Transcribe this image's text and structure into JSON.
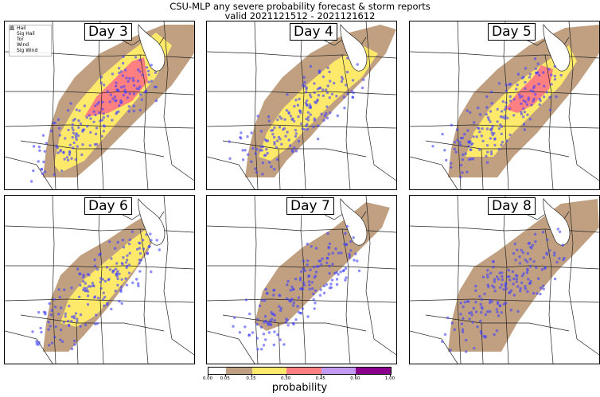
{
  "title": {
    "line1": "CSU-MLP any severe probability forecast & storm reports",
    "line2": "valid 2021121512 - 2021121612"
  },
  "legend": [
    {
      "label": "Hail",
      "shape": "circle",
      "color": "#7fbf7f"
    },
    {
      "label": "Sig Hail",
      "shape": "triangle",
      "color": "#555555"
    },
    {
      "label": "Tor",
      "shape": "circle",
      "color": "#ff7f7f"
    },
    {
      "label": "Wind",
      "shape": "circle",
      "color": "#7f7fff"
    },
    {
      "label": "Sig Wind",
      "shape": "square",
      "color": "#888888"
    }
  ],
  "panels": [
    {
      "label": "Day 3",
      "levels": [
        "brown",
        "yellow",
        "red"
      ]
    },
    {
      "label": "Day 4",
      "levels": [
        "brown",
        "yellow"
      ]
    },
    {
      "label": "Day 5",
      "levels": [
        "brown",
        "yellow",
        "red"
      ]
    },
    {
      "label": "Day 6",
      "levels": [
        "brown",
        "yellow"
      ]
    },
    {
      "label": "Day 7",
      "levels": [
        "brown"
      ]
    },
    {
      "label": "Day 8",
      "levels": [
        "brown"
      ]
    }
  ],
  "colorbar": {
    "label": "probability",
    "ticks": [
      "0.00",
      "0.05",
      "0.15",
      "0.30",
      "0.45",
      "0.60",
      "1.00"
    ],
    "colors": [
      "#ffffff",
      "#c0a080",
      "#ffe96a",
      "#ff8080",
      "#c39bf3",
      "#8b008b"
    ]
  },
  "colors": {
    "brown": "#c0a080",
    "yellow": "#ffe96a",
    "red": "#ff8080",
    "report_blue": "#4040ff"
  }
}
